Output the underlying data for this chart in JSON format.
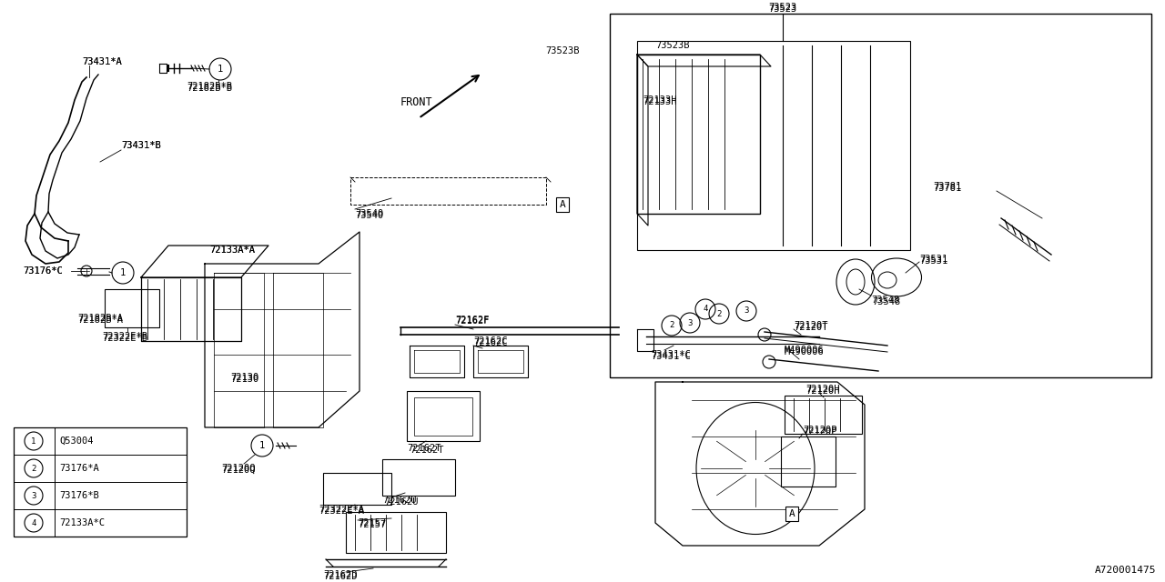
{
  "bg_color": "#ffffff",
  "line_color": "#000000",
  "diagram_code": "A720001475",
  "legend": [
    {
      "num": "1",
      "label": "Q53004"
    },
    {
      "num": "2",
      "label": "73176*A"
    },
    {
      "num": "3",
      "label": "73176*B"
    },
    {
      "num": "4",
      "label": "72133A*C"
    }
  ],
  "figsize": [
    12.8,
    6.4
  ],
  "dpi": 100,
  "xlim": [
    0,
    1280
  ],
  "ylim": [
    0,
    640
  ]
}
